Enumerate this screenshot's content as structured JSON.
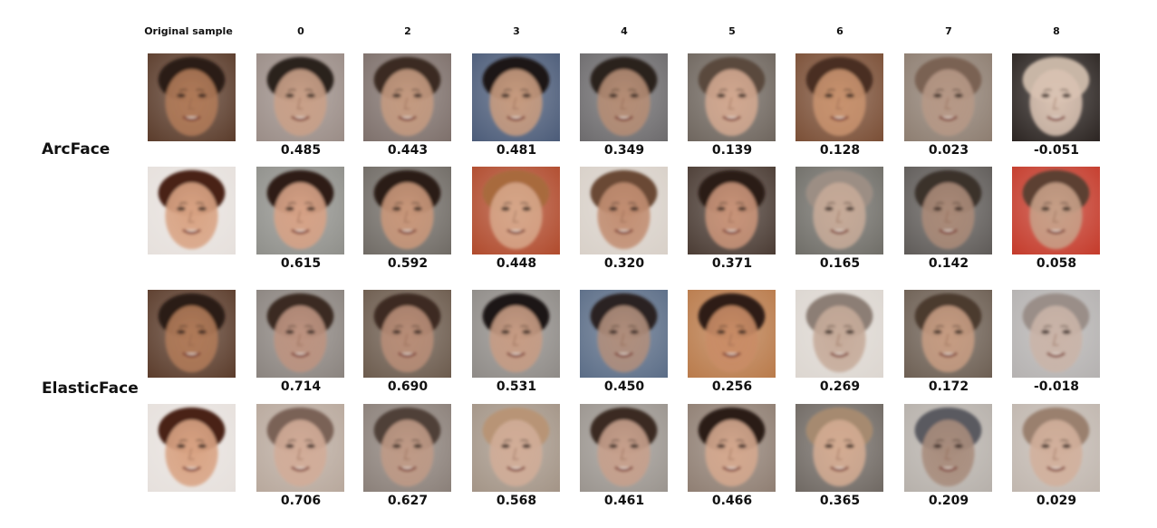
{
  "header": {
    "original_label": "Original sample",
    "columns": [
      "0",
      "2",
      "3",
      "4",
      "5",
      "6",
      "7",
      "8"
    ]
  },
  "models": [
    {
      "name": "ArcFace",
      "rows": [
        {
          "original": {
            "skin": "#b07a58",
            "hair": "#2a1c14",
            "bg": "#5a3b2a"
          },
          "scores": [
            "0.485",
            "0.443",
            "0.481",
            "0.349",
            "0.139",
            "0.128",
            "0.023",
            "-0.051"
          ],
          "faces": [
            {
              "skin": "#c9a088",
              "hair": "#2b211c",
              "bg": "#9a8c86"
            },
            {
              "skin": "#c49a80",
              "hair": "#3a2a22",
              "bg": "#7d6f6a"
            },
            {
              "skin": "#c79b7f",
              "hair": "#1f1815",
              "bg": "#4b5b78"
            },
            {
              "skin": "#b58d75",
              "hair": "#2a221f",
              "bg": "#6c6a6c"
            },
            {
              "skin": "#d2a890",
              "hair": "#5a4a3e",
              "bg": "#6e655d"
            },
            {
              "skin": "#c8926e",
              "hair": "#4a2f22",
              "bg": "#7a4e35"
            },
            {
              "skin": "#b69886",
              "hair": "#7a6252",
              "bg": "#8d7d70"
            },
            {
              "skin": "#d9c2b2",
              "hair": "#c8b6a6",
              "bg": "#2b2421"
            }
          ]
        },
        {
          "original": {
            "skin": "#d9a383",
            "hair": "#4a2218",
            "bg": "#e6e0dc"
          },
          "scores": [
            "0.615",
            "0.592",
            "0.448",
            "0.320",
            "0.371",
            "0.165",
            "0.142",
            "0.058"
          ],
          "faces": [
            {
              "skin": "#d7a286",
              "hair": "#2d1f18",
              "bg": "#8f8f8a"
            },
            {
              "skin": "#c9977a",
              "hair": "#2a1d17",
              "bg": "#6f6a64"
            },
            {
              "skin": "#d6a689",
              "hair": "#a86a3e",
              "bg": "#b04a2c"
            },
            {
              "skin": "#c28e72",
              "hair": "#6b4a36",
              "bg": "#d8d0c8"
            },
            {
              "skin": "#c99479",
              "hair": "#2a1a14",
              "bg": "#4a3b33"
            },
            {
              "skin": "#c6aa98",
              "hair": "#9c8e84",
              "bg": "#6f6d67"
            },
            {
              "skin": "#aa8a78",
              "hair": "#3b312c",
              "bg": "#5e5a57"
            },
            {
              "skin": "#c79f87",
              "hair": "#5b4032",
              "bg": "#c43a2a"
            }
          ]
        }
      ]
    },
    {
      "name": "ElasticFace",
      "rows": [
        {
          "original": {
            "skin": "#b07a58",
            "hair": "#2a1c14",
            "bg": "#5a3b2a"
          },
          "scores": [
            "0.714",
            "0.690",
            "0.531",
            "0.450",
            "0.256",
            "0.269",
            "0.172",
            "-0.018"
          ],
          "faces": [
            {
              "skin": "#bd9380",
              "hair": "#3a2b24",
              "bg": "#8a837e"
            },
            {
              "skin": "#b88d77",
              "hair": "#3d2c22",
              "bg": "#6b5a4c"
            },
            {
              "skin": "#c79c84",
              "hair": "#1e1713",
              "bg": "#8e8a86"
            },
            {
              "skin": "#b08e7c",
              "hair": "#2a2320",
              "bg": "#5a6c86"
            },
            {
              "skin": "#c98c66",
              "hair": "#2e1d14",
              "bg": "#b97a4a"
            },
            {
              "skin": "#c6ab9a",
              "hair": "#8c7e74",
              "bg": "#dcd6d0"
            },
            {
              "skin": "#c69c82",
              "hair": "#4b3a2e",
              "bg": "#6c5e52"
            },
            {
              "skin": "#cab4a8",
              "hair": "#9a8e88",
              "bg": "#b4b1b0"
            }
          ]
        },
        {
          "original": {
            "skin": "#d9a383",
            "hair": "#4a2218",
            "bg": "#e6e0dc"
          },
          "scores": [
            "0.706",
            "0.627",
            "0.568",
            "0.461",
            "0.466",
            "0.365",
            "0.209",
            "0.029"
          ],
          "faces": [
            {
              "skin": "#d2ac98",
              "hair": "#7a6256",
              "bg": "#b8a89c"
            },
            {
              "skin": "#bf9a86",
              "hair": "#4f4038",
              "bg": "#8a7f78"
            },
            {
              "skin": "#d1ad98",
              "hair": "#b89476",
              "bg": "#a39486"
            },
            {
              "skin": "#c7a08c",
              "hair": "#3b2a22",
              "bg": "#9a948e"
            },
            {
              "skin": "#d4a88e",
              "hair": "#2a1d18",
              "bg": "#8f7e72"
            },
            {
              "skin": "#d3ab92",
              "hair": "#a68a70",
              "bg": "#6f6862"
            },
            {
              "skin": "#a88c7c",
              "hair": "#5a5a60",
              "bg": "#b6b0aa"
            },
            {
              "skin": "#d2b09c",
              "hair": "#9a806e",
              "bg": "#c0b6ae"
            }
          ]
        }
      ]
    }
  ]
}
